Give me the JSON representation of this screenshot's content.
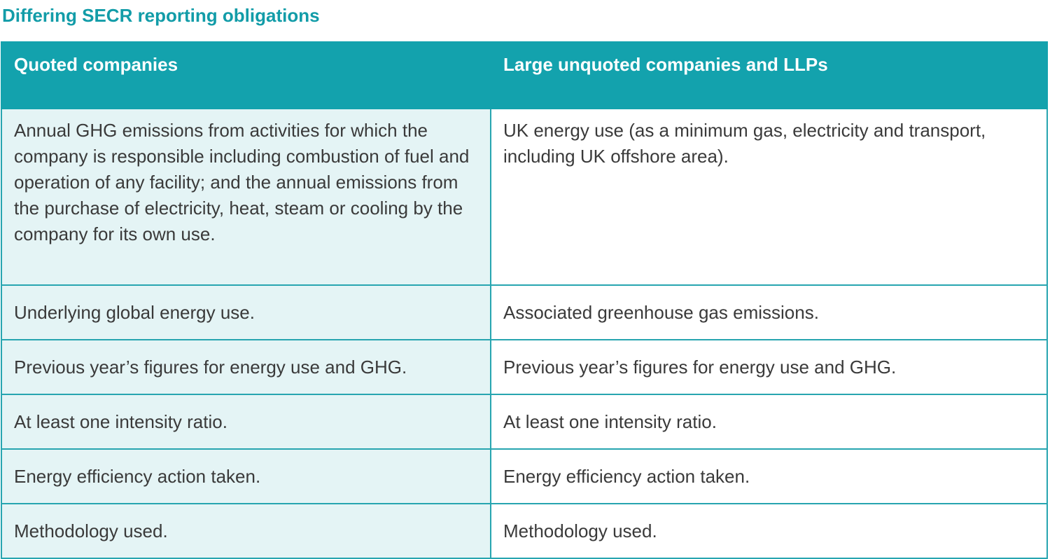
{
  "title": "Differing SECR reporting obligations",
  "table": {
    "headers": [
      "Quoted companies",
      "Large unquoted companies and LLPs"
    ],
    "rows": [
      {
        "quoted": "Annual GHG emissions from activities for which the company is responsible including combustion of fuel and operation of any facility; and the annual emissions from the purchase of electricity, heat, steam or cooling by the company for its own use.",
        "unquoted": "UK energy use (as a minimum gas, electricity and transport, including UK offshore area)."
      },
      {
        "quoted": "Underlying global energy use.",
        "unquoted": "Associated greenhouse gas emissions."
      },
      {
        "quoted": "Previous year’s figures for energy use and GHG.",
        "unquoted": "Previous year’s figures for energy use and GHG."
      },
      {
        "quoted": "At least one intensity ratio.",
        "unquoted": "At least one intensity ratio."
      },
      {
        "quoted": "Energy efficiency action taken.",
        "unquoted": "Energy efficiency action taken."
      },
      {
        "quoted": "Methodology used.",
        "unquoted": "Methodology used."
      }
    ]
  },
  "colors": {
    "accent": "#13a2ad",
    "title": "#129ca8",
    "left_column_fill": "#e4f4f5",
    "border": "#27a5b0",
    "body_text": "#3a3a3a"
  }
}
